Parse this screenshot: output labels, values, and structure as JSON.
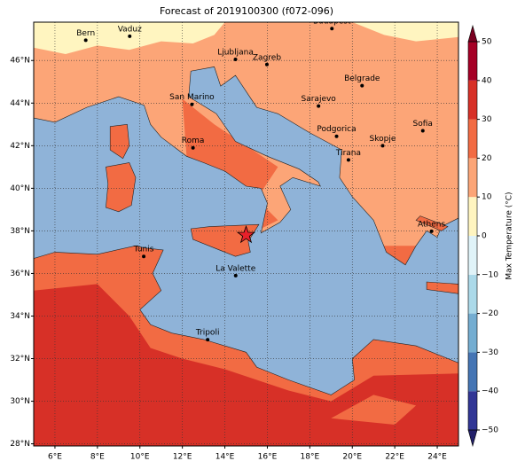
{
  "chart_data": {
    "type": "map",
    "title": "Forecast of 2019100300 (f072-096)",
    "xlim": [
      5,
      25
    ],
    "ylim": [
      27.9,
      47.8
    ],
    "xticks": [
      {
        "value": 6,
        "label": "6°E"
      },
      {
        "value": 8,
        "label": "8°E"
      },
      {
        "value": 10,
        "label": "10°E"
      },
      {
        "value": 12,
        "label": "12°E"
      },
      {
        "value": 14,
        "label": "14°E"
      },
      {
        "value": 16,
        "label": "16°E"
      },
      {
        "value": 18,
        "label": "18°E"
      },
      {
        "value": 20,
        "label": "20°E"
      },
      {
        "value": 22,
        "label": "22°E"
      },
      {
        "value": 24,
        "label": "24°E"
      }
    ],
    "yticks": [
      {
        "value": 28,
        "label": "28°N"
      },
      {
        "value": 30,
        "label": "30°N"
      },
      {
        "value": 32,
        "label": "32°N"
      },
      {
        "value": 34,
        "label": "34°N"
      },
      {
        "value": 36,
        "label": "36°N"
      },
      {
        "value": 38,
        "label": "38°N"
      },
      {
        "value": 40,
        "label": "40°N"
      },
      {
        "value": 42,
        "label": "42°N"
      },
      {
        "value": 44,
        "label": "44°N"
      },
      {
        "value": 46,
        "label": "46°N"
      }
    ],
    "grid": true,
    "cities": [
      {
        "name": "Bern",
        "lon": 7.45,
        "lat": 46.95
      },
      {
        "name": "Vaduz",
        "lon": 9.52,
        "lat": 47.14
      },
      {
        "name": "Budapest",
        "lon": 19.04,
        "lat": 47.5
      },
      {
        "name": "Ljubljana",
        "lon": 14.5,
        "lat": 46.05
      },
      {
        "name": "Zagreb",
        "lon": 15.98,
        "lat": 45.81
      },
      {
        "name": "Belgrade",
        "lon": 20.46,
        "lat": 44.82
      },
      {
        "name": "San Marino",
        "lon": 12.45,
        "lat": 43.94
      },
      {
        "name": "Sarajevo",
        "lon": 18.41,
        "lat": 43.86
      },
      {
        "name": "Sofia",
        "lon": 23.32,
        "lat": 42.7
      },
      {
        "name": "Podgorica",
        "lon": 19.26,
        "lat": 42.44
      },
      {
        "name": "Skopje",
        "lon": 21.43,
        "lat": 42.0
      },
      {
        "name": "Roma",
        "lon": 12.5,
        "lat": 41.9
      },
      {
        "name": "Tirana",
        "lon": 19.82,
        "lat": 41.33
      },
      {
        "name": "Athens",
        "lon": 23.73,
        "lat": 37.98
      },
      {
        "name": "Tunis",
        "lon": 10.18,
        "lat": 36.8
      },
      {
        "name": "La Valette",
        "lon": 14.51,
        "lat": 35.9
      },
      {
        "name": "Tripoli",
        "lon": 13.19,
        "lat": 32.89
      }
    ],
    "colorbar": {
      "label": "Max Temperature (°C)",
      "ticks": [
        {
          "value": -50,
          "label": "−50"
        },
        {
          "value": -40,
          "label": "−40"
        },
        {
          "value": -30,
          "label": "−30"
        },
        {
          "value": -20,
          "label": "−20"
        },
        {
          "value": -10,
          "label": "−10"
        },
        0,
        10,
        20,
        30,
        40,
        50
      ],
      "colors": [
        "#313695",
        "#4575b4",
        "#74add1",
        "#abd9e9",
        "#e0f3f8",
        "#fff5c0",
        "#fca577",
        "#f26b43",
        "#d73027",
        "#a50026"
      ],
      "extend_colors": [
        "#22206a",
        "#7a0020"
      ]
    }
  }
}
